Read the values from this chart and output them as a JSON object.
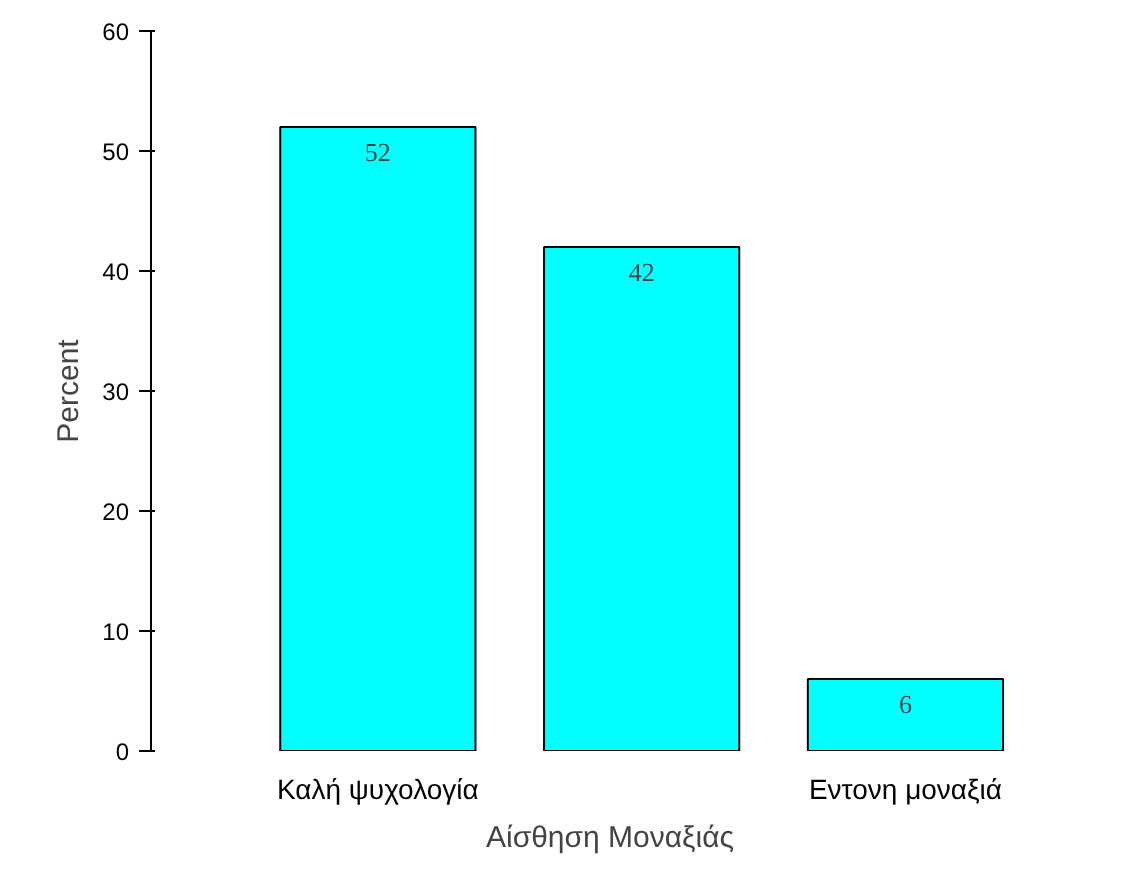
{
  "chart_data": {
    "type": "bar",
    "xlabel": "Αίσθηση Μοναξιάς",
    "ylabel": "Percent",
    "categories": [
      "Καλή ψυχολογία",
      null,
      "Εντονη μοναξιά"
    ],
    "values": [
      52,
      42,
      6
    ],
    "color": "#00ffff",
    "ylim": [
      0,
      60
    ],
    "yticks": [
      0,
      10,
      20,
      30,
      40,
      50,
      60
    ],
    "grid": false,
    "data_labels": true
  }
}
